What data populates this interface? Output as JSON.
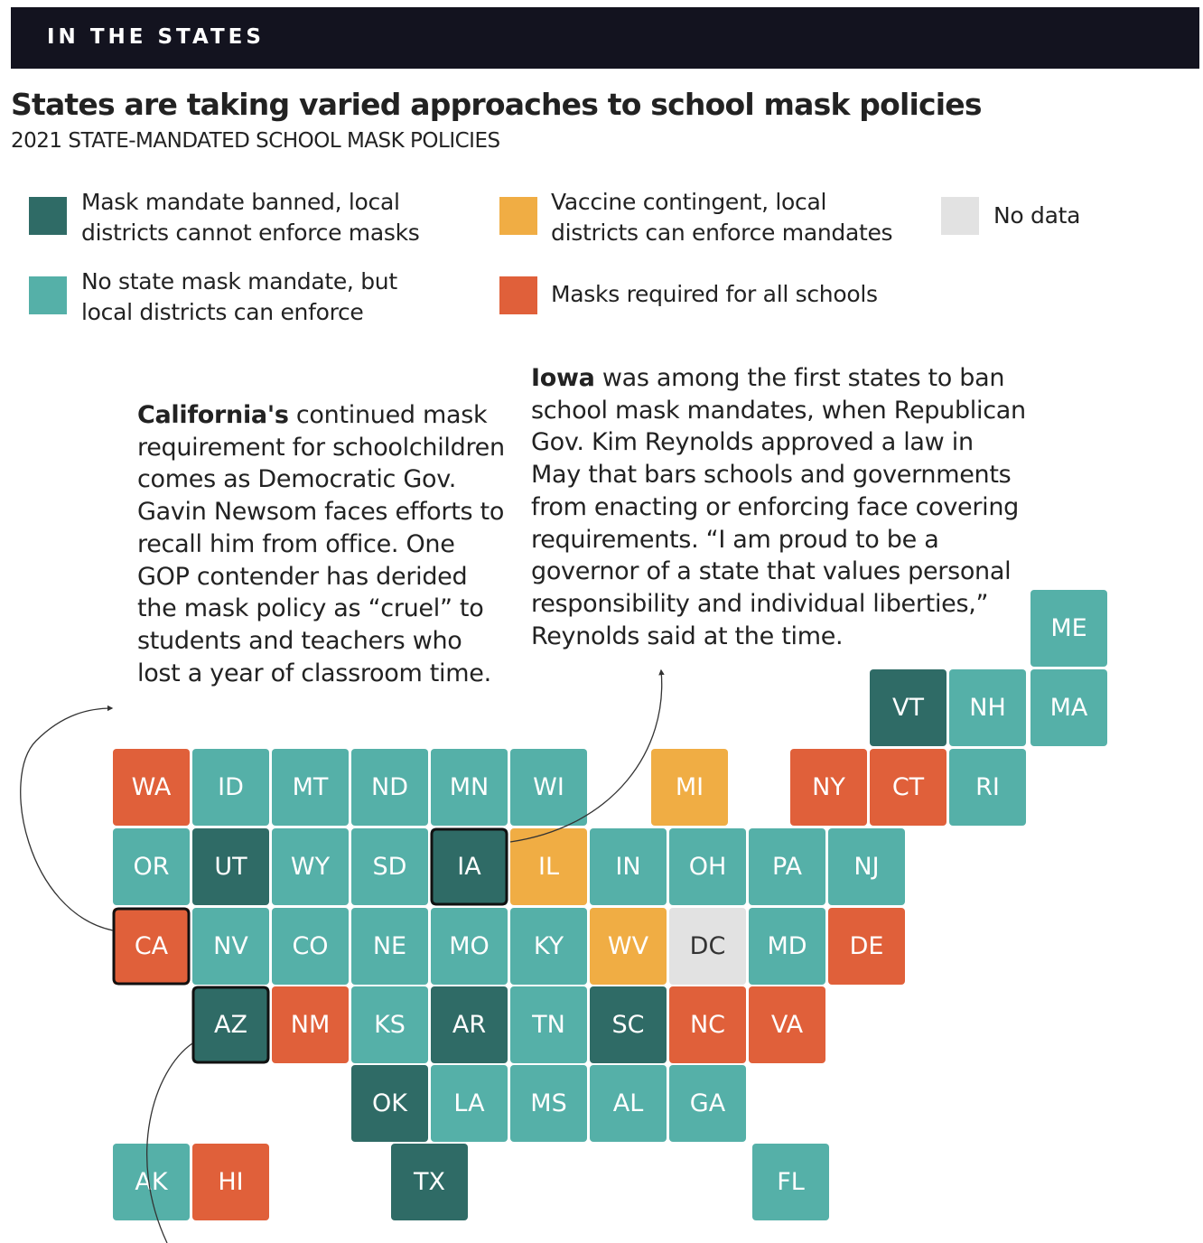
{
  "header": {
    "label": "IN THE STATES"
  },
  "title": "States are taking varied approaches to school mask policies",
  "subtitle": "2021 STATE-MANDATED SCHOOL MASK POLICIES",
  "legend": [
    {
      "label": "Mask mandate banned, local districts cannot enforce masks",
      "color": "#2f6b66"
    },
    {
      "label": "No state mask mandate, but local districts can enforce",
      "color": "#55b0a8"
    },
    {
      "label": "Vaccine contingent, local districts can enforce mandates",
      "color": "#f0ad44"
    },
    {
      "label": "Masks required for all schools",
      "color": "#e0603a"
    },
    {
      "label": "No data",
      "color": "#e2e2e2"
    }
  ],
  "annotations": [
    {
      "lead": "California's",
      "text": "continued mask requirement for schoolchildren comes as Democratic Gov. Gavin Newsom faces efforts to recall him from office. One GOP contender has derided the mask policy as “cruel” to students and teachers who lost a year of classroom time."
    },
    {
      "lead": "Iowa",
      "text": "was among the first states to ban school mask mandates, when Republican Gov. Kim Reynolds approved a law in May that bars schools and governments from enacting or enforcing face covering requirements. “I am proud to be a governor of a state that values personal responsibility and individual liberties,” Reynolds said at the time."
    }
  ],
  "tile_rows": [
    [
      {
        "label": "ME",
        "color": "#55b0a8"
      }
    ],
    [
      {
        "label": "VT",
        "color": "#2f6b66"
      },
      {
        "label": "NH",
        "color": "#55b0a8"
      },
      {
        "label": "MA",
        "color": "#55b0a8"
      }
    ],
    [
      {
        "label": "WA",
        "color": "#e0603a"
      },
      {
        "label": "ID",
        "color": "#55b0a8"
      },
      {
        "label": "MT",
        "color": "#55b0a8"
      },
      {
        "label": "ND",
        "color": "#55b0a8"
      },
      {
        "label": "MN",
        "color": "#55b0a8"
      },
      {
        "label": "WI",
        "color": "#55b0a8"
      },
      {
        "label": "MI",
        "color": "#f0ad44"
      },
      {
        "label": "NY",
        "color": "#e0603a"
      },
      {
        "label": "CT",
        "color": "#e0603a"
      },
      {
        "label": "RI",
        "color": "#55b0a8"
      }
    ],
    [
      {
        "label": "OR",
        "color": "#55b0a8"
      },
      {
        "label": "UT",
        "color": "#2f6b66"
      },
      {
        "label": "WY",
        "color": "#55b0a8"
      },
      {
        "label": "SD",
        "color": "#55b0a8"
      },
      {
        "label": "IA",
        "color": "#2f6b66",
        "highlight": true
      },
      {
        "label": "IL",
        "color": "#f0ad44"
      },
      {
        "label": "IN",
        "color": "#55b0a8"
      },
      {
        "label": "OH",
        "color": "#55b0a8"
      },
      {
        "label": "PA",
        "color": "#55b0a8"
      },
      {
        "label": "NJ",
        "color": "#55b0a8"
      }
    ],
    [
      {
        "label": "CA",
        "color": "#e0603a",
        "highlight": true
      },
      {
        "label": "NV",
        "color": "#55b0a8"
      },
      {
        "label": "CO",
        "color": "#55b0a8"
      },
      {
        "label": "NE",
        "color": "#55b0a8"
      },
      {
        "label": "MO",
        "color": "#55b0a8"
      },
      {
        "label": "KY",
        "color": "#55b0a8"
      },
      {
        "label": "WV",
        "color": "#f0ad44"
      },
      {
        "label": "DC",
        "color": "#e2e2e2"
      },
      {
        "label": "MD",
        "color": "#55b0a8"
      },
      {
        "label": "DE",
        "color": "#e0603a"
      }
    ],
    [
      {
        "label": "AZ",
        "color": "#2f6b66",
        "highlight": true
      },
      {
        "label": "NM",
        "color": "#e0603a"
      },
      {
        "label": "KS",
        "color": "#55b0a8"
      },
      {
        "label": "AR",
        "color": "#2f6b66"
      },
      {
        "label": "TN",
        "color": "#55b0a8"
      },
      {
        "label": "SC",
        "color": "#2f6b66"
      },
      {
        "label": "NC",
        "color": "#e0603a"
      },
      {
        "label": "VA",
        "color": "#e0603a"
      }
    ],
    [
      {
        "label": "OK",
        "color": "#2f6b66"
      },
      {
        "label": "LA",
        "color": "#55b0a8"
      },
      {
        "label": "MS",
        "color": "#55b0a8"
      },
      {
        "label": "AL",
        "color": "#55b0a8"
      },
      {
        "label": "GA",
        "color": "#55b0a8"
      }
    ],
    [
      {
        "label": "AK",
        "color": "#55b0a8"
      },
      {
        "label": "HI",
        "color": "#e0603a"
      },
      {
        "label": "TX",
        "color": "#2f6b66"
      },
      {
        "label": "FL",
        "color": "#55b0a8"
      }
    ]
  ]
}
